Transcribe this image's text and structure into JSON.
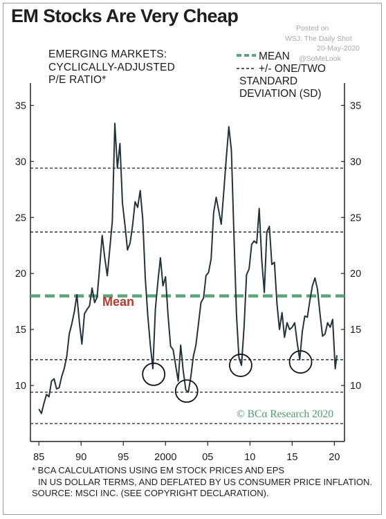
{
  "title": "EM Stocks Are Very Cheap",
  "watermark": {
    "line1": "Posted on",
    "line2": "WSJ: The Daily Shot",
    "line3": "20-May-2020",
    "line4": "@SoMeLook"
  },
  "footnote": {
    "line1": "* BCA CALCULATIONS USING EM STOCK PRICES AND EPS",
    "line2": "IN US DOLLAR TERMS, AND DEFLATED BY US CONSUMER PRICE INFLATION.",
    "line3": "SOURCE: MSCI INC. (SEE COPYRIGHT DECLARATION)."
  },
  "colors": {
    "line": "#22323a",
    "mean": "#5aa57a",
    "mean_label": "#b83a2c",
    "sd": "#222222",
    "watermark": "#a8a8a8",
    "credit": "#4f9d6c"
  },
  "chart_data": {
    "type": "line",
    "title_lines": [
      "EMERGING MARKETS:",
      "CYCLICALLY-ADJUSTED",
      "P/E RATIO*"
    ],
    "x_ticks": [
      1985,
      1990,
      1995,
      2000,
      2005,
      2010,
      2015,
      2020
    ],
    "x_tick_labels": [
      "85",
      "90",
      "95",
      "2000",
      "05",
      "10",
      "15",
      "20"
    ],
    "y_ticks": [
      10,
      15,
      20,
      25,
      30,
      35
    ],
    "y_tick_labels": [
      "10",
      "15",
      "20",
      "25",
      "30",
      "35"
    ],
    "xlim": [
      1984.0,
      2021.2
    ],
    "ylim": [
      5.0,
      37.0
    ],
    "mean": 18.0,
    "mean_label": "Mean",
    "sd_lines": [
      29.4,
      23.7,
      12.3,
      9.4,
      6.6
    ],
    "legend": {
      "mean": "MEAN",
      "sd_lines": [
        "+/- ONE/TWO",
        "STANDARD",
        "DEVIATION (SD)"
      ]
    },
    "credit": "© BCα Research 2020",
    "circles": [
      {
        "x": 1998.6,
        "y": 11.0
      },
      {
        "x": 2002.5,
        "y": 9.5
      },
      {
        "x": 2008.9,
        "y": 11.8
      },
      {
        "x": 2016.0,
        "y": 12.1
      }
    ],
    "series": [
      {
        "x": [
          1985.0,
          1985.3,
          1985.6,
          1985.9,
          1986.2,
          1986.5,
          1986.8,
          1987.1,
          1987.4,
          1987.7,
          1988.0,
          1988.3,
          1988.6,
          1988.9,
          1989.2,
          1989.5,
          1989.8,
          1990.1,
          1990.4,
          1990.7,
          1991.0,
          1991.3,
          1991.6,
          1991.9,
          1992.2,
          1992.5,
          1992.8,
          1993.1,
          1993.4,
          1993.7,
          1994.0,
          1994.3,
          1994.6,
          1994.9,
          1995.2,
          1995.5,
          1995.8,
          1996.1,
          1996.4,
          1996.7,
          1997.0,
          1997.3,
          1997.6,
          1997.9,
          1998.2,
          1998.5,
          1998.8,
          1999.1,
          1999.4,
          1999.7,
          2000.0,
          2000.3,
          2000.6,
          2000.9,
          2001.2,
          2001.5,
          2001.8,
          2002.1,
          2002.4,
          2002.7,
          2003.0,
          2003.3,
          2003.6,
          2003.9,
          2004.2,
          2004.5,
          2004.8,
          2005.1,
          2005.4,
          2005.7,
          2006.0,
          2006.3,
          2006.6,
          2006.9,
          2007.2,
          2007.5,
          2007.8,
          2008.1,
          2008.4,
          2008.7,
          2009.0,
          2009.3,
          2009.6,
          2009.9,
          2010.2,
          2010.5,
          2010.8,
          2011.1,
          2011.4,
          2011.7,
          2012.0,
          2012.3,
          2012.6,
          2012.9,
          2013.2,
          2013.5,
          2013.8,
          2014.1,
          2014.4,
          2014.7,
          2015.0,
          2015.3,
          2015.6,
          2015.9,
          2016.2,
          2016.5,
          2016.8,
          2017.1,
          2017.4,
          2017.7,
          2018.0,
          2018.3,
          2018.6,
          2018.9,
          2019.2,
          2019.5,
          2019.8,
          2020.1,
          2020.3
        ],
        "y": [
          7.9,
          7.5,
          8.4,
          9.2,
          9.0,
          10.4,
          10.6,
          9.7,
          9.8,
          10.8,
          11.5,
          12.6,
          14.6,
          15.5,
          16.6,
          18.1,
          15.6,
          13.7,
          16.4,
          16.8,
          17.1,
          18.7,
          17.4,
          17.9,
          20.6,
          23.4,
          21.4,
          19.8,
          22.2,
          24.7,
          33.4,
          29.4,
          31.6,
          26.3,
          24.3,
          22.1,
          22.7,
          24.3,
          26.4,
          25.9,
          27.4,
          24.9,
          19.6,
          16.3,
          13.6,
          11.5,
          16.8,
          19.3,
          21.4,
          18.9,
          19.7,
          16.3,
          13.5,
          13.2,
          11.8,
          10.4,
          13.6,
          11.3,
          9.6,
          9.4,
          10.8,
          12.6,
          13.6,
          15.5,
          17.4,
          17.8,
          19.8,
          20.1,
          21.3,
          25.4,
          26.8,
          25.6,
          24.4,
          27.3,
          30.3,
          33.1,
          31.0,
          23.6,
          16.4,
          12.5,
          11.8,
          15.2,
          19.9,
          20.4,
          22.6,
          22.9,
          22.7,
          25.8,
          21.2,
          18.3,
          23.7,
          24.2,
          20.8,
          21.0,
          17.3,
          15.0,
          16.5,
          14.3,
          15.6,
          15.0,
          15.2,
          15.6,
          13.8,
          12.3,
          14.8,
          16.2,
          16.1,
          17.6,
          18.9,
          19.6,
          18.6,
          16.4,
          14.4,
          14.6,
          15.6,
          15.2,
          15.9,
          11.5,
          12.7
        ]
      }
    ]
  }
}
